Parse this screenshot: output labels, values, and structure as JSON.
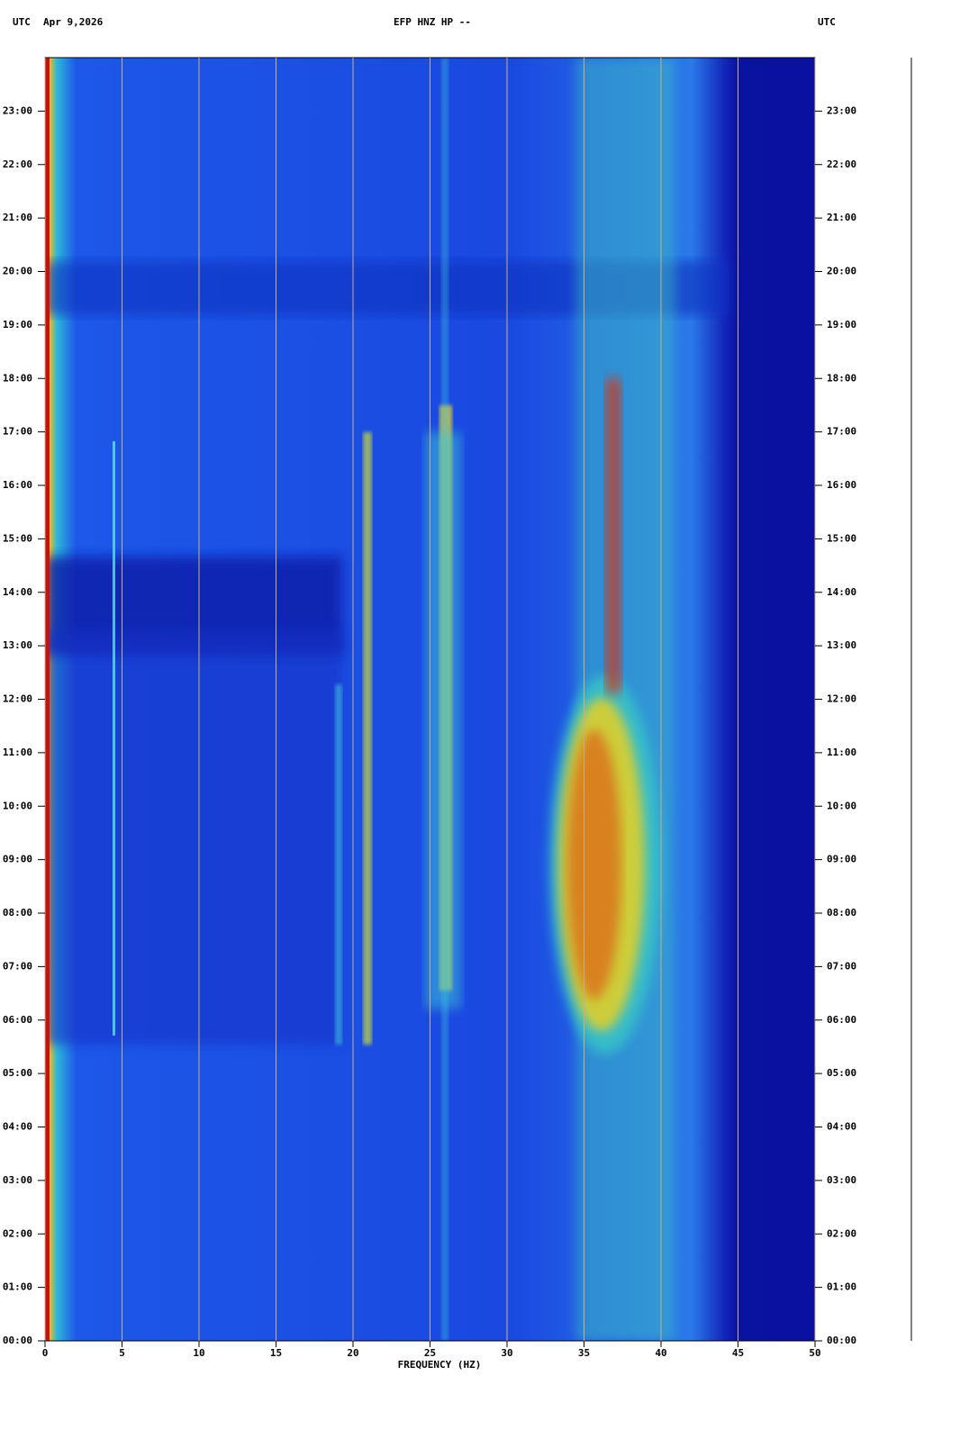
{
  "chart_data": {
    "type": "spectrogram",
    "time_zone": "UTC",
    "date": "Apr 9,2026",
    "title": "EFP HNZ HP --",
    "xlabel": "FREQUENCY (HZ)",
    "xlim": [
      0,
      50
    ],
    "xticks": [
      0,
      5,
      10,
      15,
      20,
      25,
      30,
      35,
      40,
      45,
      50
    ],
    "ylim": [
      0,
      24
    ],
    "yticks": [
      {
        "value": 0,
        "label": "00:00"
      },
      {
        "value": 1,
        "label": "01:00"
      },
      {
        "value": 2,
        "label": "02:00"
      },
      {
        "value": 3,
        "label": "03:00"
      },
      {
        "value": 4,
        "label": "04:00"
      },
      {
        "value": 5,
        "label": "05:00"
      },
      {
        "value": 6,
        "label": "06:00"
      },
      {
        "value": 7,
        "label": "07:00"
      },
      {
        "value": 8,
        "label": "08:00"
      },
      {
        "value": 9,
        "label": "09:00"
      },
      {
        "value": 10,
        "label": "10:00"
      },
      {
        "value": 11,
        "label": "11:00"
      },
      {
        "value": 12,
        "label": "12:00"
      },
      {
        "value": 13,
        "label": "13:00"
      },
      {
        "value": 14,
        "label": "14:00"
      },
      {
        "value": 15,
        "label": "15:00"
      },
      {
        "value": 16,
        "label": "16:00"
      },
      {
        "value": 17,
        "label": "17:00"
      },
      {
        "value": 18,
        "label": "18:00"
      },
      {
        "value": 19,
        "label": "19:00"
      },
      {
        "value": 20,
        "label": "20:00"
      },
      {
        "value": 21,
        "label": "21:00"
      },
      {
        "value": 22,
        "label": "22:00"
      },
      {
        "value": 23,
        "label": "23:00"
      }
    ],
    "grid": true
  }
}
